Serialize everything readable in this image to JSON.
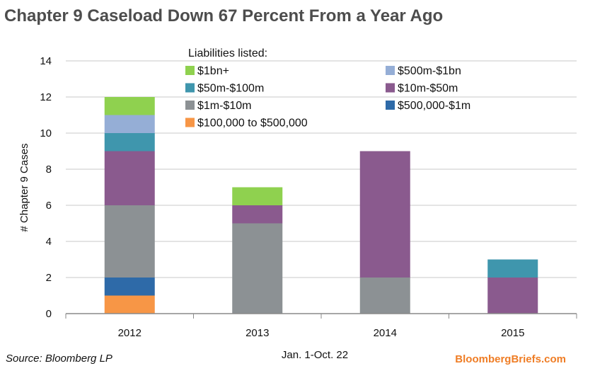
{
  "chart_data": {
    "type": "bar",
    "stacked": true,
    "title": "Chapter 9 Caseload Down 67 Percent From a Year Ago",
    "xlabel": "",
    "ylabel": "# Chapter 9 Cases",
    "ylim": [
      0,
      14
    ],
    "yticks": [
      0,
      2,
      4,
      6,
      8,
      10,
      12,
      14
    ],
    "grid": true,
    "legend_title": "Liabilities listed:",
    "legend_placement": "top-center",
    "categories": [
      "2012",
      "2013",
      "2014",
      "2015"
    ],
    "series": [
      {
        "name": "$100,000 to $500,000",
        "color": "#f79646",
        "values": [
          1,
          0,
          0,
          0
        ]
      },
      {
        "name": "$500,000-$1m",
        "color": "#2e6aa8",
        "values": [
          1,
          0,
          0,
          0
        ]
      },
      {
        "name": "$1m-$10m",
        "color": "#8c9194",
        "values": [
          4,
          5,
          2,
          0
        ]
      },
      {
        "name": "$10m-$50m",
        "color": "#8a5a8e",
        "values": [
          3,
          1,
          7,
          2
        ]
      },
      {
        "name": "$50m-$100m",
        "color": "#3f96ad",
        "values": [
          1,
          0,
          0,
          1
        ]
      },
      {
        "name": "$500m-$1bn",
        "color": "#95aed6",
        "values": [
          1,
          0,
          0,
          0
        ]
      },
      {
        "name": "$1bn+",
        "color": "#8fd14f",
        "values": [
          1,
          1,
          0,
          0
        ]
      }
    ]
  },
  "footer": {
    "source": "Source: Bloomberg LP",
    "note": "Jan. 1-Oct. 22",
    "brand": "BloombergBriefs.com"
  }
}
